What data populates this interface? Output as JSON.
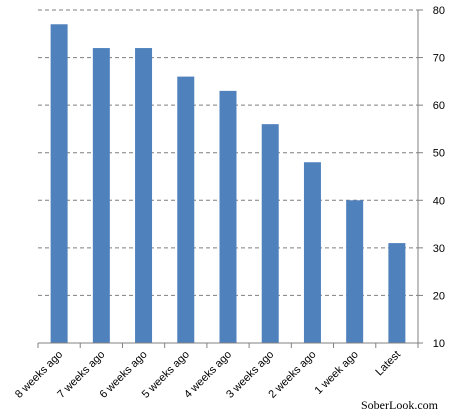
{
  "chart_data": {
    "type": "bar",
    "categories": [
      "8 weeks ago",
      "7 weeks ago",
      "6 weeks ago",
      "5 weeks ago",
      "4 weeks ago",
      "3 weeks ago",
      "2 weeks ago",
      "1 week ago",
      "Latest"
    ],
    "values": [
      77,
      72,
      72,
      66,
      63,
      56,
      48,
      40,
      31
    ],
    "title": "",
    "xlabel": "",
    "ylabel": "",
    "ylim": [
      10,
      80
    ],
    "yticks": [
      10,
      20,
      30,
      40,
      50,
      60,
      70,
      80
    ],
    "y_axis_side": "right",
    "grid": true,
    "grid_style": "dashed",
    "bar_color": "#4f81bd",
    "legend": "none"
  },
  "watermark": "SoberLook.com"
}
